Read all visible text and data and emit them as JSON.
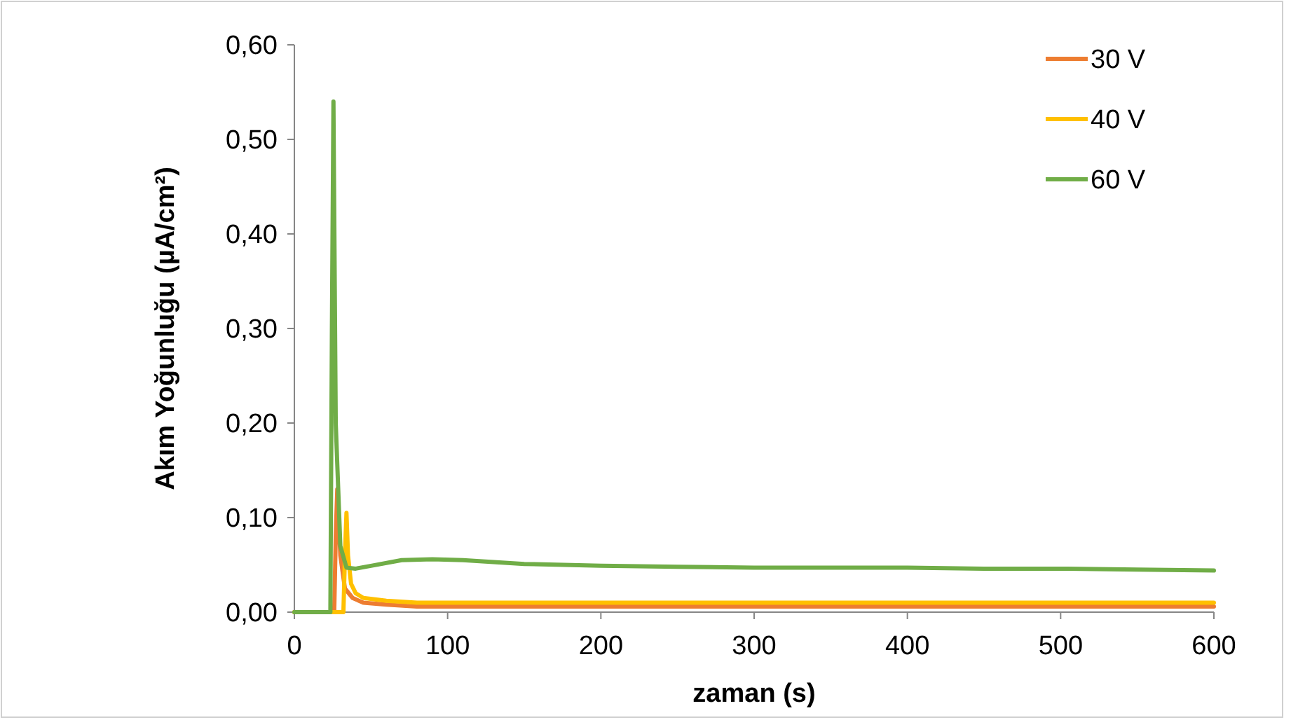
{
  "chart_data": {
    "type": "line",
    "xlabel": "zaman (s)",
    "ylabel": "Akım Yoğunluğu (µA/cm²)",
    "xlim": [
      0,
      600
    ],
    "xticks": [
      0,
      100,
      200,
      300,
      400,
      500,
      600
    ],
    "ylim": [
      0,
      0.6
    ],
    "yticks": [
      {
        "value": 0,
        "label": "0,00"
      },
      {
        "value": 0.1,
        "label": "0,10"
      },
      {
        "value": 0.2,
        "label": "0,20"
      },
      {
        "value": 0.3,
        "label": "0,30"
      },
      {
        "value": 0.4,
        "label": "0,40"
      },
      {
        "value": 0.5,
        "label": "0,50"
      },
      {
        "value": 0.6,
        "label": "0,60"
      }
    ],
    "grid": false,
    "legend": "top right",
    "line_style": "solid",
    "series": [
      {
        "name": "30 V",
        "color": "#ed7d31",
        "x": [
          0,
          26,
          27,
          28,
          30,
          33,
          38,
          45,
          60,
          80,
          150,
          300,
          450,
          600
        ],
        "values": [
          0,
          0,
          0.08,
          0.13,
          0.06,
          0.025,
          0.015,
          0.01,
          0.008,
          0.006,
          0.006,
          0.006,
          0.006,
          0.006
        ]
      },
      {
        "name": "40 V",
        "color": "#ffc000",
        "x": [
          0,
          32,
          33,
          34,
          35,
          37,
          40,
          45,
          60,
          80,
          150,
          300,
          450,
          600
        ],
        "values": [
          0,
          0,
          0.06,
          0.105,
          0.06,
          0.03,
          0.02,
          0.015,
          0.012,
          0.01,
          0.01,
          0.01,
          0.01,
          0.01
        ]
      },
      {
        "name": "60 V",
        "color": "#70ad47",
        "x": [
          0,
          23.5,
          24.5,
          25.5,
          27,
          30,
          34,
          40,
          50,
          70,
          90,
          110,
          150,
          200,
          250,
          300,
          350,
          400,
          450,
          500,
          550,
          600
        ],
        "values": [
          0,
          0,
          0.3,
          0.54,
          0.2,
          0.07,
          0.047,
          0.046,
          0.049,
          0.055,
          0.056,
          0.055,
          0.051,
          0.049,
          0.048,
          0.047,
          0.047,
          0.047,
          0.046,
          0.046,
          0.045,
          0.044
        ]
      }
    ]
  }
}
